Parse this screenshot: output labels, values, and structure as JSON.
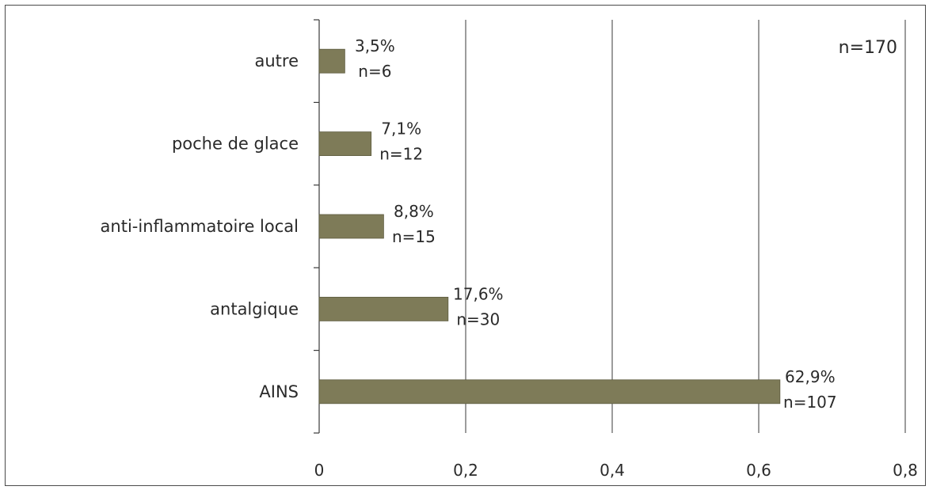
{
  "chart_data": {
    "type": "bar",
    "orientation": "horizontal",
    "categories": [
      "autre",
      "poche de glace",
      "anti-inflammatoire local",
      "antalgique",
      "AINS"
    ],
    "values": [
      0.035,
      0.071,
      0.088,
      0.176,
      0.629
    ],
    "percent_labels": [
      "3,5%",
      "7,1%",
      "8,8%",
      "17,6%",
      "62,9%"
    ],
    "count_labels": [
      "n=6",
      "n=12",
      "n=15",
      "n=30",
      "n=107"
    ],
    "total_label": "n=170",
    "xlim": [
      0,
      0.8
    ],
    "xticks": [
      0,
      0.2,
      0.4,
      0.6,
      0.8
    ],
    "xtick_labels": [
      "0",
      "0,2",
      "0,4",
      "0,6",
      "0,8"
    ],
    "grid": "vertical",
    "bar_color": "#7e7b58"
  }
}
